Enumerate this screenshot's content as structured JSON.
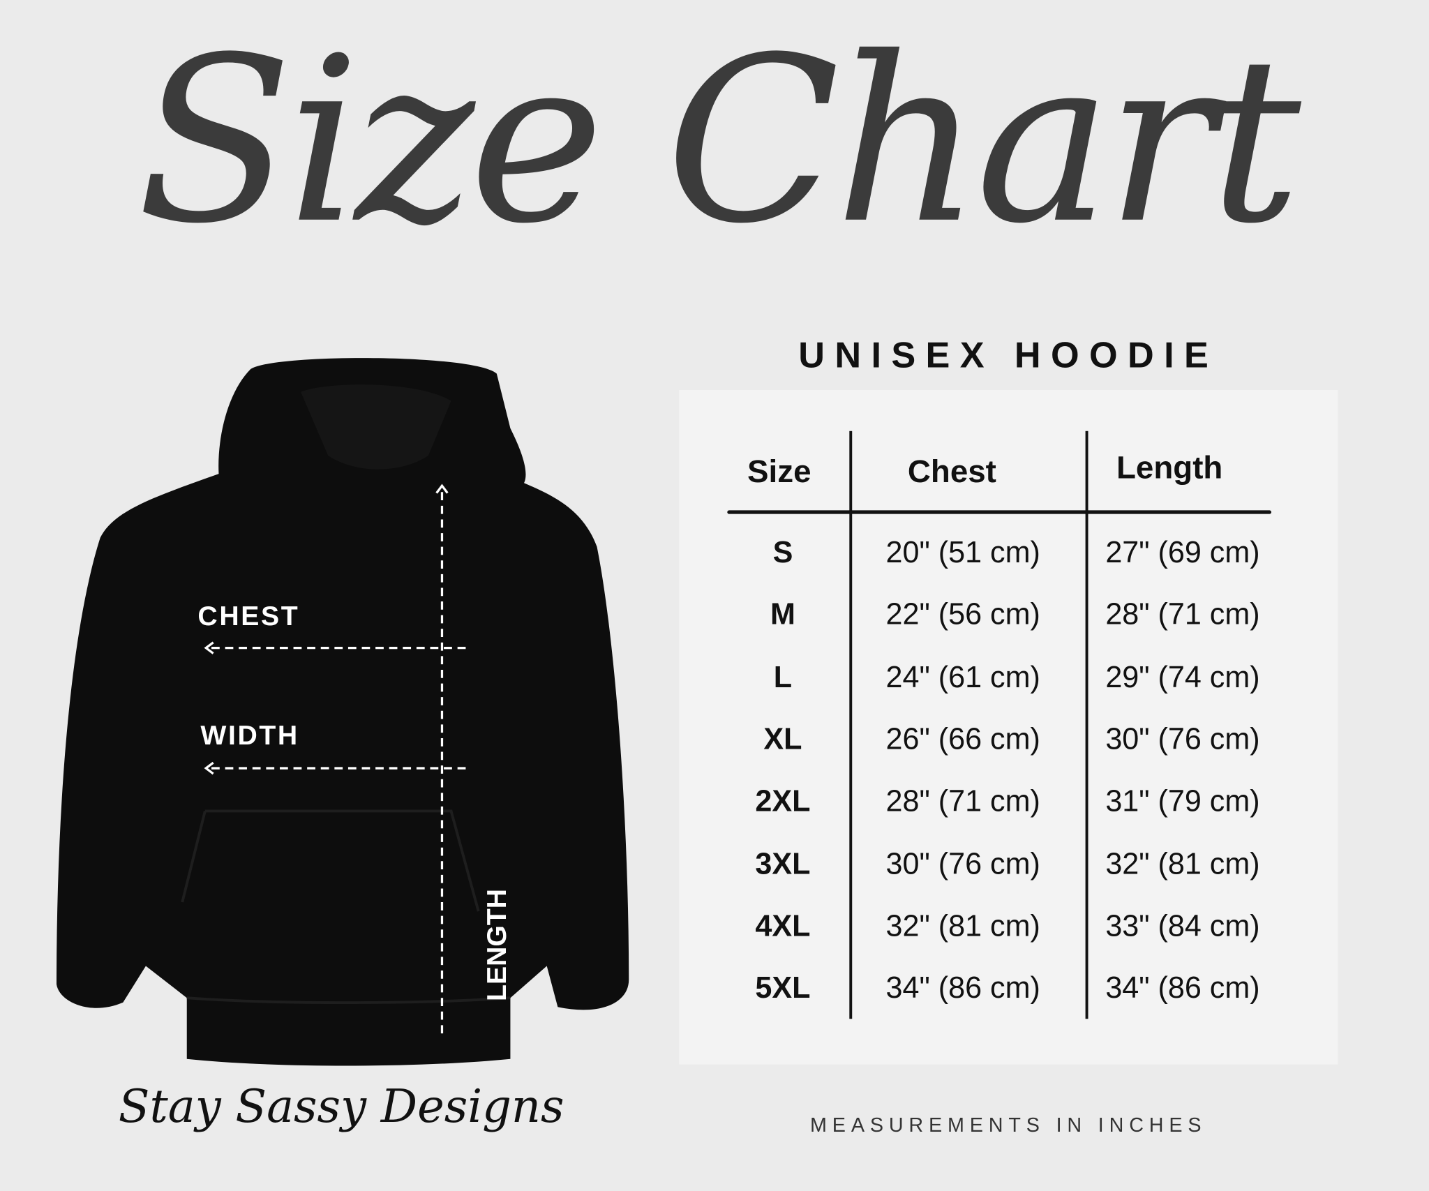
{
  "title": "Size Chart",
  "subtitle": "UNISEX HOODIE",
  "table": {
    "headers": [
      "Size",
      "Chest",
      "Length"
    ],
    "rows": [
      {
        "size": "S",
        "chest": "20\" (51 cm)",
        "length": "27\" (69 cm)"
      },
      {
        "size": "M",
        "chest": "22\" (56 cm)",
        "length": "28\" (71 cm)"
      },
      {
        "size": "L",
        "chest": "24\" (61 cm)",
        "length": "29\" (74 cm)"
      },
      {
        "size": "XL",
        "chest": "26\" (66 cm)",
        "length": "30\" (76 cm)"
      },
      {
        "size": "2XL",
        "chest": "28\" (71 cm)",
        "length": "31\" (79 cm)"
      },
      {
        "size": "3XL",
        "chest": "30\" (76 cm)",
        "length": "32\" (81 cm)"
      },
      {
        "size": "4XL",
        "chest": "32\" (81 cm)",
        "length": "33\" (84 cm)"
      },
      {
        "size": "5XL",
        "chest": "34\" (86 cm)",
        "length": "34\" (86 cm)"
      }
    ]
  },
  "diagram": {
    "chest_label": "CHEST",
    "width_label": "WIDTH",
    "length_label": "LENGTH",
    "garment_color": "#0d0d0d"
  },
  "brand": "Stay Sassy Designs",
  "note": "MEASUREMENTS IN INCHES"
}
